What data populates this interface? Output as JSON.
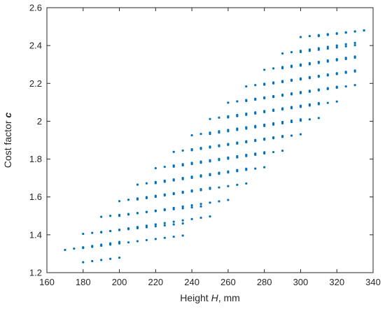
{
  "chart_data": {
    "type": "scatter",
    "xlabel": {
      "prefix": "Height ",
      "symbol": "H",
      "suffix": ", mm"
    },
    "ylabel": {
      "prefix": "Cost factor ",
      "symbol": "c"
    },
    "xlim": [
      160,
      340
    ],
    "ylim": [
      1.2,
      2.6
    ],
    "xticks": [
      160,
      180,
      200,
      220,
      240,
      260,
      280,
      300,
      320,
      340
    ],
    "yticks": [
      1.2,
      1.4,
      1.6,
      1.8,
      2.0,
      2.2,
      2.4,
      2.6
    ],
    "xtick_labels": [
      "160",
      "180",
      "200",
      "220",
      "240",
      "260",
      "280",
      "300",
      "320",
      "340"
    ],
    "ytick_labels": [
      "1.2",
      "1.4",
      "1.6",
      "1.8",
      "2",
      "2.2",
      "2.4",
      "2.6"
    ],
    "grid": false,
    "box": true,
    "marker_color": "#0072BD",
    "series": [
      {
        "rows": [
          {
            "x_start": 170,
            "x_step": 5,
            "n": 7,
            "y_start": 1.32,
            "y_step": 0.007
          },
          {
            "x_start": 180,
            "x_step": 5,
            "n": 5,
            "y_start": 1.255,
            "y_step": 0.006
          },
          {
            "x_start": 180,
            "x_step": 5,
            "n": 12,
            "y_start": 1.405,
            "y_step": 0.005
          },
          {
            "x_start": 190,
            "x_step": 5,
            "n": 12,
            "y_start": 1.495,
            "y_step": 0.005
          },
          {
            "x_start": 200,
            "x_step": 5,
            "n": 11,
            "y_start": 1.578,
            "y_step": 0.007
          },
          {
            "x_start": 210,
            "x_step": 5,
            "n": 13,
            "y_start": 1.665,
            "y_step": 0.007
          },
          {
            "x_start": 220,
            "x_step": 5,
            "n": 13,
            "y_start": 1.752,
            "y_step": 0.007
          },
          {
            "x_start": 230,
            "x_step": 5,
            "n": 13,
            "y_start": 1.838,
            "y_step": 0.007
          },
          {
            "x_start": 240,
            "x_step": 5,
            "n": 13,
            "y_start": 1.926,
            "y_step": 0.007
          },
          {
            "x_start": 250,
            "x_step": 5,
            "n": 13,
            "y_start": 2.012,
            "y_step": 0.007
          },
          {
            "x_start": 260,
            "x_step": 5,
            "n": 13,
            "y_start": 2.098,
            "y_step": 0.007
          },
          {
            "x_start": 270,
            "x_step": 5,
            "n": 13,
            "y_start": 2.184,
            "y_step": 0.007
          },
          {
            "x_start": 280,
            "x_step": 5,
            "n": 11,
            "y_start": 2.272,
            "y_step": 0.007
          },
          {
            "x_start": 290,
            "x_step": 5,
            "n": 9,
            "y_start": 2.358,
            "y_step": 0.007
          },
          {
            "x_start": 300,
            "x_step": 5,
            "n": 8,
            "y_start": 2.445,
            "y_step": 0.005
          },
          {
            "x_start": 180,
            "x_step": 5,
            "n": 12,
            "y_start": 1.33,
            "y_step": 0.006
          },
          {
            "x_start": 190,
            "x_step": 5,
            "n": 13,
            "y_start": 1.413,
            "y_step": 0.007
          },
          {
            "x_start": 200,
            "x_step": 5,
            "n": 13,
            "y_start": 1.5,
            "y_step": 0.007
          },
          {
            "x_start": 210,
            "x_step": 5,
            "n": 13,
            "y_start": 1.587,
            "y_step": 0.007
          },
          {
            "x_start": 220,
            "x_step": 5,
            "n": 13,
            "y_start": 1.673,
            "y_step": 0.007
          },
          {
            "x_start": 230,
            "x_step": 5,
            "n": 13,
            "y_start": 1.76,
            "y_step": 0.007
          },
          {
            "x_start": 240,
            "x_step": 5,
            "n": 13,
            "y_start": 1.847,
            "y_step": 0.007
          },
          {
            "x_start": 250,
            "x_step": 5,
            "n": 13,
            "y_start": 1.933,
            "y_step": 0.007
          },
          {
            "x_start": 260,
            "x_step": 5,
            "n": 13,
            "y_start": 2.02,
            "y_step": 0.007
          },
          {
            "x_start": 270,
            "x_step": 5,
            "n": 13,
            "y_start": 2.107,
            "y_step": 0.007
          },
          {
            "x_start": 280,
            "x_step": 5,
            "n": 11,
            "y_start": 2.193,
            "y_step": 0.007
          },
          {
            "x_start": 290,
            "x_step": 5,
            "n": 9,
            "y_start": 2.28,
            "y_step": 0.007
          },
          {
            "x_start": 300,
            "x_step": 5,
            "n": 7,
            "y_start": 2.366,
            "y_step": 0.006
          },
          {
            "x_start": 310,
            "x_step": 5,
            "n": 6,
            "y_start": 2.45,
            "y_step": 0.006
          }
        ]
      }
    ]
  }
}
